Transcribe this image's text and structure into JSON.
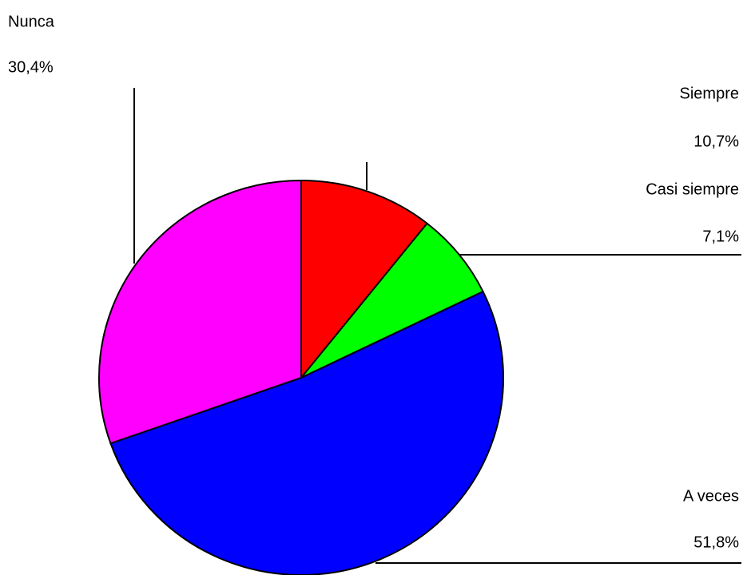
{
  "chart_data": {
    "type": "pie",
    "categories": [
      "Siempre",
      "Casi siempre",
      "A veces",
      "Nunca"
    ],
    "values": [
      10.7,
      7.1,
      51.8,
      30.4
    ],
    "value_labels": [
      "10,7%",
      "7,1%",
      "51,8%",
      "30,4%"
    ],
    "colors": [
      "#ff0000",
      "#00ff00",
      "#0000ff",
      "#ff00ff"
    ]
  }
}
